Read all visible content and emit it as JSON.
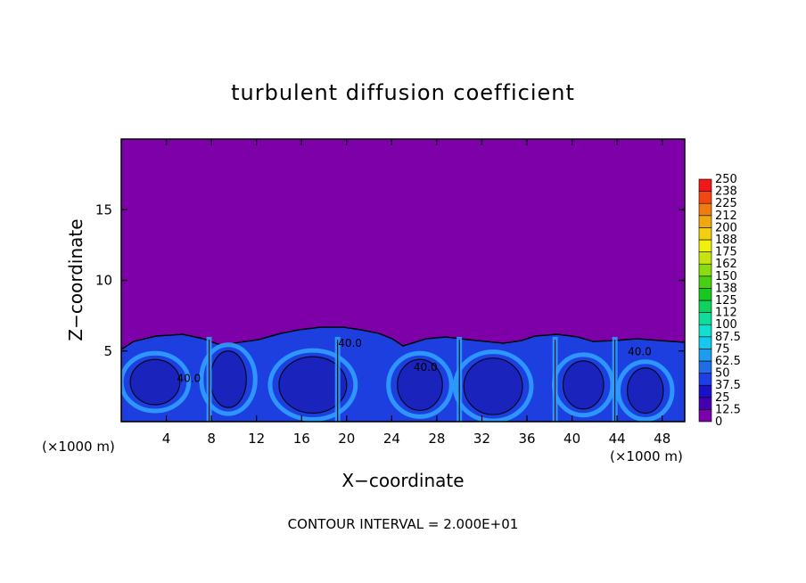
{
  "chart_data": {
    "type": "heatmap",
    "title": "turbulent diffusion coefficient",
    "xlabel": "X−coordinate",
    "ylabel": "Z−coordinate",
    "x_unit_left": "(×1000 m)",
    "x_unit_right": "(×1000 m)",
    "footer": "CONTOUR INTERVAL = 2.000E+01",
    "xlim": [
      0,
      50
    ],
    "ylim": [
      0,
      20
    ],
    "x_ticks": [
      4,
      8,
      12,
      16,
      20,
      24,
      28,
      32,
      36,
      40,
      44,
      48
    ],
    "y_ticks": [
      5,
      10,
      15
    ],
    "contour_labels": [
      {
        "text": "40.0",
        "x": 6.0,
        "y": 2.8
      },
      {
        "text": "40.0",
        "x": 20.3,
        "y": 5.3
      },
      {
        "text": "40.0",
        "x": 27.0,
        "y": 3.6
      },
      {
        "text": "40.0",
        "x": 46.0,
        "y": 4.7
      }
    ],
    "colorbar": {
      "levels": [
        "0",
        "12.5",
        "25",
        "37.5",
        "50",
        "62.5",
        "75",
        "87.5",
        "100",
        "112",
        "125",
        "138",
        "150",
        "162",
        "175",
        "188",
        "200",
        "212",
        "225",
        "238",
        "250"
      ],
      "colors": [
        "#7a00a8",
        "#4400b0",
        "#1a10c8",
        "#1e3ee6",
        "#1f6ee8",
        "#1f9cf0",
        "#14c8f0",
        "#10e0d0",
        "#10dc9c",
        "#10d060",
        "#18c820",
        "#48d010",
        "#88dc10",
        "#c8e410",
        "#f0f010",
        "#f0d010",
        "#f0a810",
        "#f07c10",
        "#f04810",
        "#f01818",
        "#f07878"
      ]
    },
    "background_value_range": [
      0,
      12.5
    ],
    "turbulent_layer": {
      "top_z": 6.2,
      "value_range": [
        25,
        62.5
      ],
      "description_colors": {
        "free_atmosphere": "#7d00a8",
        "layer_core": "#1e3fe0",
        "layer_highlights": "#2fa0ff",
        "contours": "#000000"
      }
    }
  }
}
